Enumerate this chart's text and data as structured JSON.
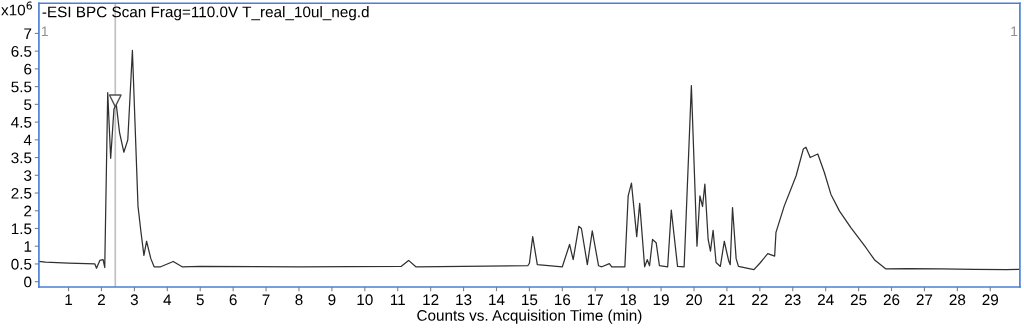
{
  "chart_data": {
    "type": "line",
    "title": "-ESI BPC Scan Frag=110.0V T_real_10ul_neg.d",
    "xlabel": "Counts vs. Acquisition Time (min)",
    "ylabel": "x10$^{6}$",
    "annotations": [
      "1",
      "1"
    ],
    "xlim": [
      0.1,
      29.9
    ],
    "ylim": [
      -0.15,
      7.85
    ],
    "xticks": [
      1,
      2,
      3,
      4,
      5,
      6,
      7,
      8,
      9,
      10,
      11,
      12,
      13,
      14,
      15,
      16,
      17,
      18,
      19,
      20,
      21,
      22,
      23,
      24,
      25,
      26,
      27,
      28,
      29
    ],
    "yticks": [
      0,
      0.5,
      1,
      1.5,
      2,
      2.5,
      3,
      3.5,
      4,
      4.5,
      5,
      5.5,
      6,
      6.5,
      7
    ],
    "grid": false,
    "legend": false,
    "ref_lines": [
      {
        "axis": "x",
        "value": 2.42,
        "color": "#c0c0c0"
      }
    ],
    "series": [
      {
        "color": "#303030",
        "line_style": "solid",
        "marker": "none",
        "x": [
          0.1,
          0.3,
          1.0,
          1.8,
          1.85,
          1.95,
          2.05,
          2.1,
          2.19,
          2.28,
          2.38,
          2.45,
          2.55,
          2.68,
          2.8,
          2.94,
          3.11,
          3.2,
          3.29,
          3.37,
          3.5,
          3.6,
          3.8,
          4.18,
          4.45,
          5,
          8,
          11.1,
          11.33,
          11.55,
          14.95,
          15.0,
          15.1,
          15.24,
          16.0,
          16.22,
          16.33,
          16.5,
          16.58,
          16.76,
          16.91,
          17.1,
          17.2,
          17.43,
          17.5,
          17.9,
          18.0,
          18.1,
          18.26,
          18.35,
          18.5,
          18.58,
          18.65,
          18.74,
          18.85,
          18.95,
          19.2,
          19.31,
          19.5,
          19.7,
          19.92,
          20.09,
          20.18,
          20.26,
          20.33,
          20.43,
          20.5,
          20.58,
          20.67,
          20.8,
          20.92,
          21.05,
          21.1,
          21.17,
          21.28,
          21.35,
          21.82,
          22.0,
          22.24,
          22.45,
          22.49,
          22.74,
          23.1,
          23.32,
          23.4,
          23.53,
          23.76,
          23.96,
          24.16,
          24.42,
          24.77,
          25.23,
          25.48,
          25.83,
          26.5,
          27.5,
          28.5,
          29.5,
          29.9
        ],
        "values": [
          0.57,
          0.55,
          0.52,
          0.5,
          0.38,
          0.6,
          0.62,
          0.4,
          5.33,
          3.48,
          4.87,
          5.0,
          4.2,
          3.65,
          4.0,
          6.52,
          2.13,
          1.4,
          0.74,
          1.14,
          0.65,
          0.42,
          0.42,
          0.57,
          0.42,
          0.43,
          0.42,
          0.43,
          0.6,
          0.42,
          0.45,
          0.52,
          1.27,
          0.48,
          0.42,
          1.05,
          0.62,
          1.56,
          1.5,
          0.48,
          1.43,
          0.45,
          0.42,
          0.51,
          0.42,
          0.42,
          2.42,
          2.78,
          1.27,
          2.21,
          0.42,
          0.62,
          0.45,
          1.19,
          1.1,
          0.45,
          0.42,
          2.02,
          0.43,
          0.42,
          5.53,
          1.0,
          2.42,
          2.12,
          2.75,
          1.19,
          0.86,
          1.45,
          0.54,
          0.43,
          1.14,
          0.6,
          0.48,
          2.09,
          0.65,
          0.43,
          0.34,
          0.52,
          0.79,
          0.72,
          1.39,
          2.13,
          2.98,
          3.74,
          3.79,
          3.5,
          3.6,
          3.08,
          2.46,
          1.99,
          1.52,
          0.95,
          0.62,
          0.36,
          0.37,
          0.36,
          0.35,
          0.34,
          0.35
        ]
      },
      {
        "type": "scatter",
        "color": "#505050",
        "marker": "triangle",
        "x": [
          2.42
        ],
        "values": [
          5.1
        ]
      }
    ]
  }
}
